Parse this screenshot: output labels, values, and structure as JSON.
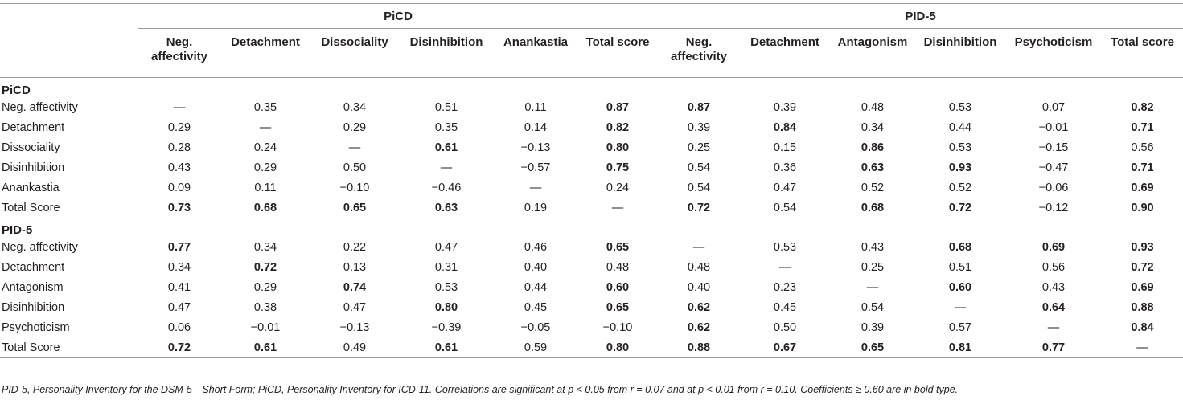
{
  "header": {
    "group_left": "PiCD",
    "group_right": "PID-5",
    "columns": [
      "Neg.\naffectivity",
      "Detachment",
      "Dissociality",
      "Disinhibition",
      "Anankastia",
      "Total score",
      "Neg.\naffectivity",
      "Detachment",
      "Antagonism",
      "Disinhibition",
      "Psychoticism",
      "Total score"
    ]
  },
  "sections": [
    {
      "title": "PiCD",
      "rows": [
        {
          "label": "Neg. affectivity",
          "cells": [
            {
              "v": "—",
              "b": false
            },
            {
              "v": "0.35",
              "b": false
            },
            {
              "v": "0.34",
              "b": false
            },
            {
              "v": "0.51",
              "b": false
            },
            {
              "v": "0.11",
              "b": false
            },
            {
              "v": "0.87",
              "b": true
            },
            {
              "v": "0.87",
              "b": true
            },
            {
              "v": "0.39",
              "b": false
            },
            {
              "v": "0.48",
              "b": false
            },
            {
              "v": "0.53",
              "b": false
            },
            {
              "v": "0.07",
              "b": false
            },
            {
              "v": "0.82",
              "b": true
            }
          ]
        },
        {
          "label": "Detachment",
          "cells": [
            {
              "v": "0.29",
              "b": false
            },
            {
              "v": "—",
              "b": false
            },
            {
              "v": "0.29",
              "b": false
            },
            {
              "v": "0.35",
              "b": false
            },
            {
              "v": "0.14",
              "b": false
            },
            {
              "v": "0.82",
              "b": true
            },
            {
              "v": "0.39",
              "b": false
            },
            {
              "v": "0.84",
              "b": true
            },
            {
              "v": "0.34",
              "b": false
            },
            {
              "v": "0.44",
              "b": false
            },
            {
              "v": "−0.01",
              "b": false
            },
            {
              "v": "0.71",
              "b": true
            }
          ]
        },
        {
          "label": "Dissociality",
          "cells": [
            {
              "v": "0.28",
              "b": false
            },
            {
              "v": "0.24",
              "b": false
            },
            {
              "v": "—",
              "b": false
            },
            {
              "v": "0.61",
              "b": true
            },
            {
              "v": "−0.13",
              "b": false
            },
            {
              "v": "0.80",
              "b": true
            },
            {
              "v": "0.25",
              "b": false
            },
            {
              "v": "0.15",
              "b": false
            },
            {
              "v": "0.86",
              "b": true
            },
            {
              "v": "0.53",
              "b": false
            },
            {
              "v": "−0.15",
              "b": false
            },
            {
              "v": "0.56",
              "b": false
            }
          ]
        },
        {
          "label": "Disinhibition",
          "cells": [
            {
              "v": "0.43",
              "b": false
            },
            {
              "v": "0.29",
              "b": false
            },
            {
              "v": "0.50",
              "b": false
            },
            {
              "v": "—",
              "b": false
            },
            {
              "v": "−0.57",
              "b": false
            },
            {
              "v": "0.75",
              "b": true
            },
            {
              "v": "0.54",
              "b": false
            },
            {
              "v": "0.36",
              "b": false
            },
            {
              "v": "0.63",
              "b": true
            },
            {
              "v": "0.93",
              "b": true
            },
            {
              "v": "−0.47",
              "b": false
            },
            {
              "v": "0.71",
              "b": true
            }
          ]
        },
        {
          "label": "Anankastia",
          "cells": [
            {
              "v": "0.09",
              "b": false
            },
            {
              "v": "0.11",
              "b": false
            },
            {
              "v": "−0.10",
              "b": false
            },
            {
              "v": "−0.46",
              "b": false
            },
            {
              "v": "—",
              "b": false
            },
            {
              "v": "0.24",
              "b": false
            },
            {
              "v": "0.54",
              "b": false
            },
            {
              "v": "0.47",
              "b": false
            },
            {
              "v": "0.52",
              "b": false
            },
            {
              "v": "0.52",
              "b": false
            },
            {
              "v": "−0.06",
              "b": false
            },
            {
              "v": "0.69",
              "b": true
            }
          ]
        },
        {
          "label": "Total Score",
          "cells": [
            {
              "v": "0.73",
              "b": true
            },
            {
              "v": "0.68",
              "b": true
            },
            {
              "v": "0.65",
              "b": true
            },
            {
              "v": "0.63",
              "b": true
            },
            {
              "v": "0.19",
              "b": false
            },
            {
              "v": "—",
              "b": false
            },
            {
              "v": "0.72",
              "b": true
            },
            {
              "v": "0.54",
              "b": false
            },
            {
              "v": "0.68",
              "b": true
            },
            {
              "v": "0.72",
              "b": true
            },
            {
              "v": "−0.12",
              "b": false
            },
            {
              "v": "0.90",
              "b": true
            }
          ]
        }
      ]
    },
    {
      "title": "PID-5",
      "rows": [
        {
          "label": "Neg. affectivity",
          "cells": [
            {
              "v": "0.77",
              "b": true
            },
            {
              "v": "0.34",
              "b": false
            },
            {
              "v": "0.22",
              "b": false
            },
            {
              "v": "0.47",
              "b": false
            },
            {
              "v": "0.46",
              "b": false
            },
            {
              "v": "0.65",
              "b": true
            },
            {
              "v": "—",
              "b": false
            },
            {
              "v": "0.53",
              "b": false
            },
            {
              "v": "0.43",
              "b": false
            },
            {
              "v": "0.68",
              "b": true
            },
            {
              "v": "0.69",
              "b": true
            },
            {
              "v": "0.93",
              "b": true
            }
          ]
        },
        {
          "label": "Detachment",
          "cells": [
            {
              "v": "0.34",
              "b": false
            },
            {
              "v": "0.72",
              "b": true
            },
            {
              "v": "0.13",
              "b": false
            },
            {
              "v": "0.31",
              "b": false
            },
            {
              "v": "0.40",
              "b": false
            },
            {
              "v": "0.48",
              "b": false
            },
            {
              "v": "0.48",
              "b": false
            },
            {
              "v": "—",
              "b": false
            },
            {
              "v": "0.25",
              "b": false
            },
            {
              "v": "0.51",
              "b": false
            },
            {
              "v": "0.56",
              "b": false
            },
            {
              "v": "0.72",
              "b": true
            }
          ]
        },
        {
          "label": "Antagonism",
          "cells": [
            {
              "v": "0.41",
              "b": false
            },
            {
              "v": "0.29",
              "b": false
            },
            {
              "v": "0.74",
              "b": true
            },
            {
              "v": "0.53",
              "b": false
            },
            {
              "v": "0.44",
              "b": false
            },
            {
              "v": "0.60",
              "b": true
            },
            {
              "v": "0.40",
              "b": false
            },
            {
              "v": "0.23",
              "b": false
            },
            {
              "v": "—",
              "b": false
            },
            {
              "v": "0.60",
              "b": true
            },
            {
              "v": "0.43",
              "b": false
            },
            {
              "v": "0.69",
              "b": true
            }
          ]
        },
        {
          "label": "Disinhibition",
          "cells": [
            {
              "v": "0.47",
              "b": false
            },
            {
              "v": "0.38",
              "b": false
            },
            {
              "v": "0.47",
              "b": false
            },
            {
              "v": "0.80",
              "b": true
            },
            {
              "v": "0.45",
              "b": false
            },
            {
              "v": "0.65",
              "b": true
            },
            {
              "v": "0.62",
              "b": true
            },
            {
              "v": "0.45",
              "b": false
            },
            {
              "v": "0.54",
              "b": false
            },
            {
              "v": "—",
              "b": false
            },
            {
              "v": "0.64",
              "b": true
            },
            {
              "v": "0.88",
              "b": true
            }
          ]
        },
        {
          "label": "Psychoticism",
          "cells": [
            {
              "v": "0.06",
              "b": false
            },
            {
              "v": "−0.01",
              "b": false
            },
            {
              "v": "−0.13",
              "b": false
            },
            {
              "v": "−0.39",
              "b": false
            },
            {
              "v": "−0.05",
              "b": false
            },
            {
              "v": "−0.10",
              "b": false
            },
            {
              "v": "0.62",
              "b": true
            },
            {
              "v": "0.50",
              "b": false
            },
            {
              "v": "0.39",
              "b": false
            },
            {
              "v": "0.57",
              "b": false
            },
            {
              "v": "—",
              "b": false
            },
            {
              "v": "0.84",
              "b": true
            }
          ]
        },
        {
          "label": "Total Score",
          "cells": [
            {
              "v": "0.72",
              "b": true
            },
            {
              "v": "0.61",
              "b": true
            },
            {
              "v": "0.49",
              "b": false
            },
            {
              "v": "0.61",
              "b": true
            },
            {
              "v": "0.59",
              "b": false
            },
            {
              "v": "0.80",
              "b": true
            },
            {
              "v": "0.88",
              "b": true
            },
            {
              "v": "0.67",
              "b": true
            },
            {
              "v": "0.65",
              "b": true
            },
            {
              "v": "0.81",
              "b": true
            },
            {
              "v": "0.77",
              "b": true
            },
            {
              "v": "—",
              "b": false
            }
          ]
        }
      ]
    }
  ],
  "footnote": "PID-5, Personality Inventory for the DSM-5—Short Form; PiCD, Personality Inventory for ICD-11. Correlations are significant at p < 0.05 from r = 0.07 and at p < 0.01 from r = 0.10. Coefficients ≥ 0.60 are in bold type."
}
